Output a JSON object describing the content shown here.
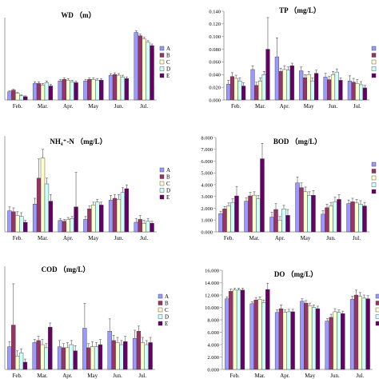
{
  "categories": [
    "Feb.",
    "Mar.",
    "Apr.",
    "May",
    "Jun.",
    "Jul."
  ],
  "series_names": [
    "A",
    "B",
    "C",
    "D",
    "E"
  ],
  "colors": {
    "A": "#9999ff",
    "B": "#993366",
    "C": "#ffffcc",
    "D": "#ccffff",
    "E": "#660066",
    "error_bar": "#555555",
    "axis": "#888888"
  },
  "chart_data": [
    {
      "type": "bar",
      "title": "WD （m）",
      "categories": [
        "Feb.",
        "Mar.",
        "Apr.",
        "May",
        "Jun.",
        "Jul."
      ],
      "ylim": [
        0,
        1
      ],
      "y_ticks": [],
      "series": [
        {
          "name": "A",
          "values": [
            0.1,
            0.2,
            0.23,
            0.23,
            0.3,
            0.82
          ],
          "errors": [
            0.01,
            0.02,
            0.02,
            0.02,
            0.02,
            0.02
          ]
        },
        {
          "name": "B",
          "values": [
            0.12,
            0.2,
            0.25,
            0.25,
            0.31,
            0.78
          ],
          "errors": [
            0.01,
            0.02,
            0.02,
            0.02,
            0.02,
            0.02
          ]
        },
        {
          "name": "C",
          "values": [
            0.08,
            0.18,
            0.24,
            0.25,
            0.3,
            0.74
          ],
          "errors": [
            0.01,
            0.02,
            0.02,
            0.02,
            0.02,
            0.02
          ]
        },
        {
          "name": "D",
          "values": [
            0.05,
            0.21,
            0.22,
            0.24,
            0.28,
            0.7
          ],
          "errors": [
            0.01,
            0.02,
            0.02,
            0.02,
            0.02,
            0.02
          ]
        },
        {
          "name": "E",
          "values": [
            0.04,
            0.17,
            0.21,
            0.24,
            0.26,
            0.66
          ],
          "errors": [
            0.01,
            0.02,
            0.02,
            0.02,
            0.02,
            0.02
          ]
        }
      ]
    },
    {
      "type": "bar",
      "title": "TP （mg/L）",
      "categories": [
        "Feb.",
        "Mar.",
        "Apr.",
        "May",
        "Jun.",
        "Jul."
      ],
      "ylim": [
        0,
        0.14
      ],
      "y_ticks": [
        "0.000",
        "0.020",
        "0.040",
        "0.060",
        "0.080",
        "0.100",
        "0.120",
        "0.140"
      ],
      "series": [
        {
          "name": "A",
          "values": [
            0.025,
            0.048,
            0.068,
            0.046,
            0.036,
            0.03
          ],
          "errors": [
            0.006,
            0.006,
            0.03,
            0.006,
            0.006,
            0.008
          ]
        },
        {
          "name": "B",
          "values": [
            0.037,
            0.023,
            0.045,
            0.035,
            0.032,
            0.028
          ],
          "errors": [
            0.006,
            0.005,
            0.005,
            0.005,
            0.005,
            0.006
          ]
        },
        {
          "name": "C",
          "values": [
            0.034,
            0.03,
            0.048,
            0.04,
            0.04,
            0.026
          ],
          "errors": [
            0.005,
            0.005,
            0.006,
            0.005,
            0.005,
            0.006
          ]
        },
        {
          "name": "D",
          "values": [
            0.03,
            0.04,
            0.047,
            0.03,
            0.044,
            0.024
          ],
          "errors": [
            0.005,
            0.005,
            0.005,
            0.005,
            0.005,
            0.005
          ]
        },
        {
          "name": "E",
          "values": [
            0.022,
            0.08,
            0.054,
            0.042,
            0.031,
            0.019
          ],
          "errors": [
            0.005,
            0.05,
            0.004,
            0.005,
            0.004,
            0.004
          ]
        }
      ]
    },
    {
      "type": "bar",
      "title": "NH₄⁺-N （mg/L）",
      "categories": [
        "Feb.",
        "Mar.",
        "Apr.",
        "May",
        "Jun.",
        "Jul."
      ],
      "ylim": [
        0,
        1
      ],
      "y_ticks": [],
      "series": [
        {
          "name": "A",
          "values": [
            0.22,
            0.29,
            0.12,
            0.13,
            0.33,
            0.1
          ],
          "errors": [
            0.04,
            0.06,
            0.02,
            0.03,
            0.05,
            0.04
          ]
        },
        {
          "name": "B",
          "values": [
            0.21,
            0.56,
            0.11,
            0.24,
            0.35,
            0.13
          ],
          "errors": [
            0.04,
            0.2,
            0.02,
            0.03,
            0.04,
            0.04
          ]
        },
        {
          "name": "C",
          "values": [
            0.17,
            0.77,
            0.13,
            0.28,
            0.34,
            0.09
          ],
          "errors": [
            0.04,
            0.09,
            0.02,
            0.03,
            0.05,
            0.03
          ]
        },
        {
          "name": "D",
          "values": [
            0.16,
            0.5,
            0.14,
            0.31,
            0.41,
            0.11
          ],
          "errors": [
            0.04,
            0.06,
            0.02,
            0.03,
            0.05,
            0.03
          ]
        },
        {
          "name": "E",
          "values": [
            0.1,
            0.32,
            0.26,
            0.28,
            0.45,
            0.09
          ],
          "errors": [
            0.02,
            0.07,
            0.36,
            0.03,
            0.04,
            0.02
          ]
        }
      ]
    },
    {
      "type": "bar",
      "title": "BOD （mg/L）",
      "categories": [
        "Feb.",
        "Mar.",
        "Apr.",
        "May",
        "Jun.",
        "Jul."
      ],
      "ylim": [
        0,
        8
      ],
      "y_ticks": [
        "0.000",
        "1.000",
        "2.000",
        "3.000",
        "4.000",
        "5.000",
        "6.000",
        "7.000",
        "8.000"
      ],
      "series": [
        {
          "name": "A",
          "values": [
            1.55,
            2.6,
            1.25,
            4.15,
            1.5,
            2.4
          ],
          "errors": [
            0.2,
            0.3,
            0.4,
            0.5,
            0.3,
            0.3
          ]
        },
        {
          "name": "B",
          "values": [
            1.95,
            3.05,
            1.9,
            3.75,
            2.05,
            2.55
          ],
          "errors": [
            0.2,
            0.3,
            0.5,
            0.4,
            0.3,
            0.3
          ]
        },
        {
          "name": "C",
          "values": [
            2.2,
            3.1,
            1.0,
            3.4,
            2.2,
            2.45
          ],
          "errors": [
            0.25,
            0.3,
            0.3,
            0.4,
            0.3,
            0.3
          ]
        },
        {
          "name": "D",
          "values": [
            2.5,
            2.8,
            1.95,
            3.1,
            2.55,
            2.35
          ],
          "errors": [
            0.3,
            0.3,
            0.3,
            0.3,
            0.4,
            0.3
          ]
        },
        {
          "name": "E",
          "values": [
            3.05,
            6.2,
            1.4,
            3.1,
            2.75,
            2.2
          ],
          "errors": [
            0.8,
            1.3,
            0.5,
            0.4,
            0.4,
            0.3
          ]
        }
      ]
    },
    {
      "type": "bar",
      "title": "COD （mg/L）",
      "categories": [
        "Feb.",
        "Mar.",
        "Apr.",
        "May",
        "Jun.",
        "Jul."
      ],
      "ylim": [
        0,
        1
      ],
      "y_ticks": [],
      "series": [
        {
          "name": "A",
          "values": [
            0.22,
            0.26,
            0.22,
            0.4,
            0.37,
            0.3
          ],
          "errors": [
            0.05,
            0.03,
            0.06,
            0.24,
            0.12,
            0.08
          ]
        },
        {
          "name": "B",
          "values": [
            0.43,
            0.28,
            0.21,
            0.21,
            0.28,
            0.37
          ],
          "errors": [
            0.4,
            0.04,
            0.04,
            0.04,
            0.05,
            0.05
          ]
        },
        {
          "name": "C",
          "values": [
            0.13,
            0.24,
            0.21,
            0.22,
            0.26,
            0.26
          ],
          "errors": [
            0.05,
            0.05,
            0.05,
            0.05,
            0.05,
            0.05
          ]
        },
        {
          "name": "D",
          "values": [
            0.16,
            0.21,
            0.24,
            0.22,
            0.24,
            0.24
          ],
          "errors": [
            0.04,
            0.04,
            0.04,
            0.04,
            0.04,
            0.04
          ]
        },
        {
          "name": "E",
          "values": [
            0.07,
            0.41,
            0.18,
            0.24,
            0.27,
            0.26
          ],
          "errors": [
            0.03,
            0.04,
            0.05,
            0.05,
            0.05,
            0.05
          ]
        }
      ]
    },
    {
      "type": "bar",
      "title": "DO （mg/L）",
      "categories": [
        "Feb.",
        "Mar.",
        "Apr.",
        "May",
        "Jun.",
        "Jul."
      ],
      "ylim": [
        0,
        16
      ],
      "y_ticks": [
        "0.000",
        "2.000",
        "4.000",
        "6.000",
        "8.000",
        "10.000",
        "12.000",
        "14.000",
        "16.000"
      ],
      "series": [
        {
          "name": "A",
          "values": [
            11.4,
            10.6,
            9.2,
            11.0,
            7.8,
            11.3
          ],
          "errors": [
            0.3,
            0.3,
            0.4,
            0.4,
            0.4,
            0.5
          ]
        },
        {
          "name": "B",
          "values": [
            12.6,
            11.2,
            9.8,
            10.7,
            8.4,
            12.0
          ],
          "errors": [
            0.4,
            0.4,
            0.6,
            0.4,
            0.5,
            0.8
          ]
        },
        {
          "name": "C",
          "values": [
            12.8,
            11.3,
            9.2,
            10.3,
            9.3,
            11.8
          ],
          "errors": [
            0.3,
            0.4,
            0.4,
            0.4,
            0.5,
            0.6
          ]
        },
        {
          "name": "D",
          "values": [
            12.8,
            10.8,
            9.3,
            10.0,
            9.2,
            11.5
          ],
          "errors": [
            0.3,
            0.4,
            0.4,
            0.4,
            0.4,
            0.5
          ]
        },
        {
          "name": "E",
          "values": [
            12.8,
            12.9,
            9.3,
            9.8,
            9.0,
            11.4
          ],
          "errors": [
            0.3,
            1.0,
            0.4,
            0.4,
            0.4,
            0.5
          ]
        }
      ]
    }
  ]
}
